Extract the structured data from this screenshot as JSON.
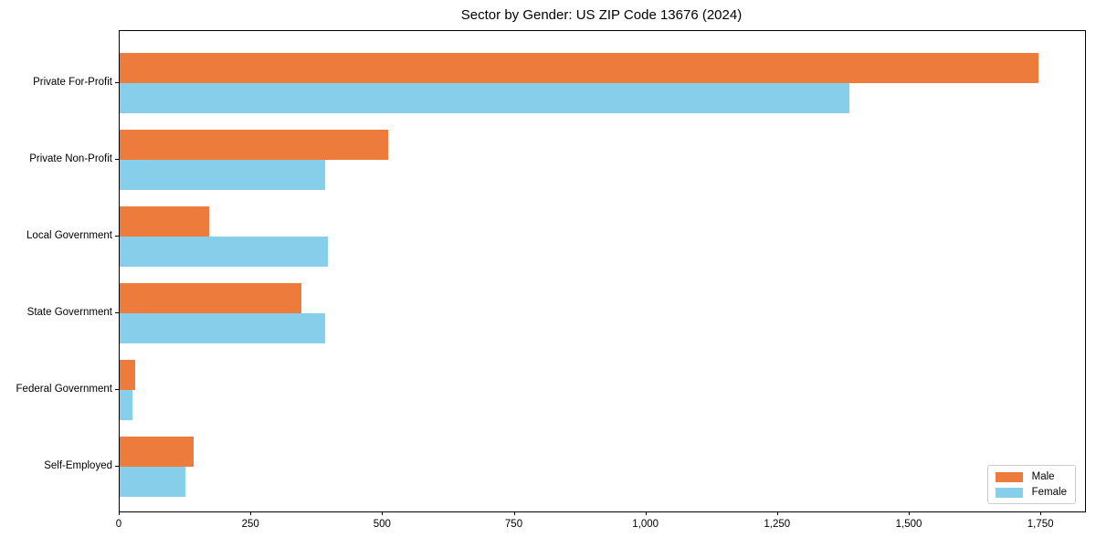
{
  "title": "Sector by Gender: US ZIP Code 13676 (2024)",
  "chart_data": {
    "type": "bar",
    "orientation": "horizontal",
    "title": "Sector by Gender: US ZIP Code 13676 (2024)",
    "categories": [
      "Private For-Profit",
      "Private Non-Profit",
      "Local Government",
      "State Government",
      "Federal Government",
      "Self-Employed"
    ],
    "series": [
      {
        "name": "Male",
        "color": "#ed7b3c",
        "values": [
          1745,
          510,
          170,
          345,
          30,
          140
        ]
      },
      {
        "name": "Female",
        "color": "#87ceeb",
        "values": [
          1385,
          390,
          395,
          390,
          25,
          125
        ]
      }
    ],
    "xlabel": "",
    "ylabel": "",
    "xlim": [
      0,
      1833
    ],
    "xticks": [
      0,
      250,
      500,
      750,
      1000,
      1250,
      1500,
      1750
    ],
    "xtick_labels": [
      "0",
      "250",
      "500",
      "750",
      "1,000",
      "1,250",
      "1,500",
      "1,750"
    ],
    "grid": false,
    "bar_height": 0.4,
    "legend": {
      "position": "lower right",
      "entries": [
        "Male",
        "Female"
      ]
    },
    "axis_color": "#000000",
    "legend_border_color": "#cccccc"
  }
}
